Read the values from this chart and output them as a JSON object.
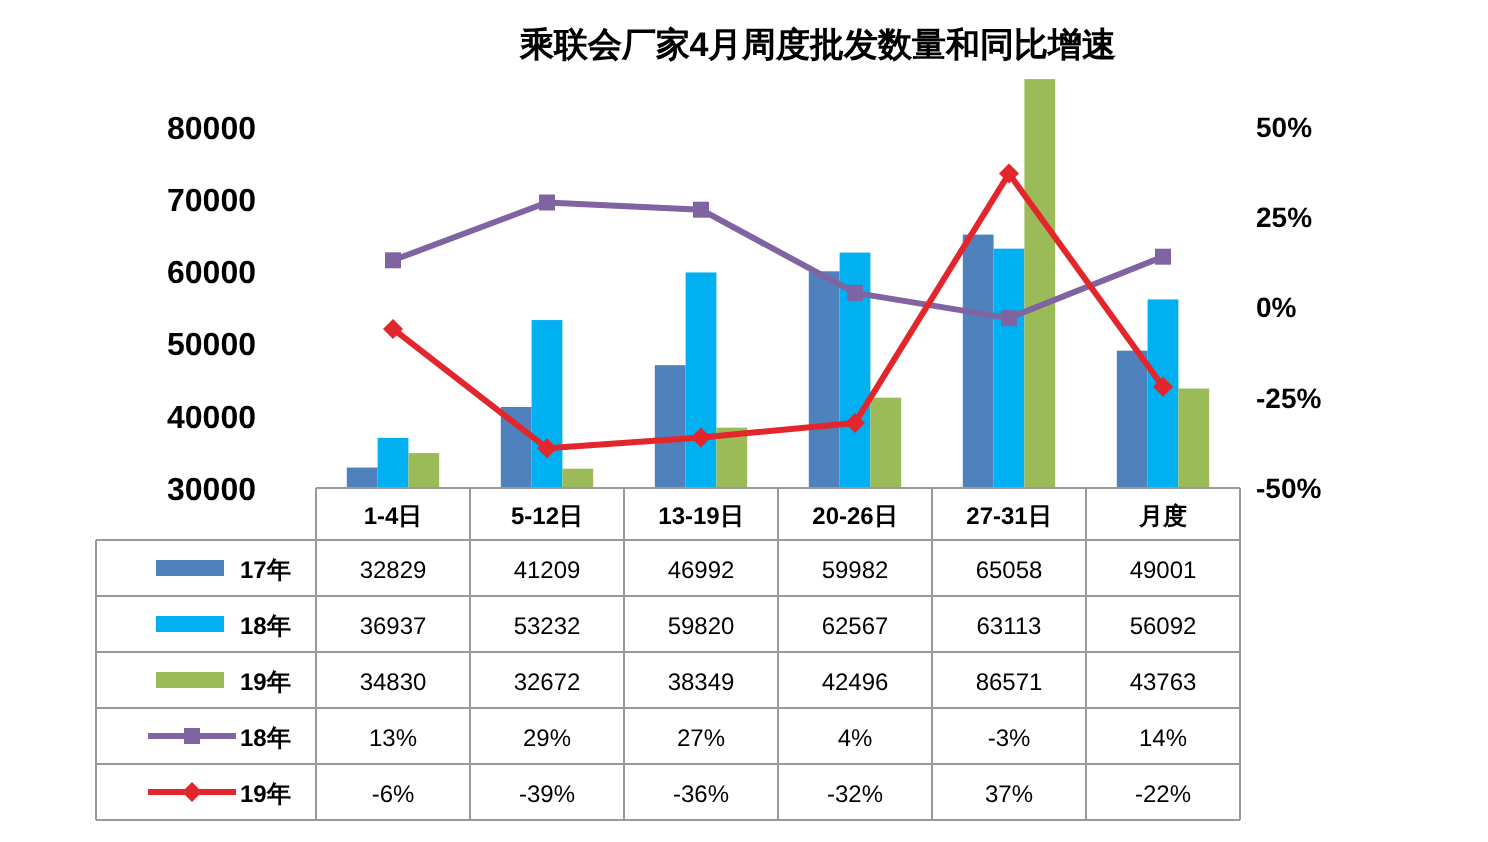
{
  "chart_data": {
    "type": "bar",
    "title": "乘联会厂家4月周度批发数量和同比增速",
    "categories": [
      "1-4日",
      "5-12日",
      "13-19日",
      "20-26日",
      "27-31日",
      "月度"
    ],
    "ylim": [
      30000,
      87000
    ],
    "yticks": [
      30000,
      40000,
      50000,
      60000,
      70000,
      80000
    ],
    "y2lim": [
      -50,
      64
    ],
    "y2ticks": [
      {
        "value": -50,
        "label": "-50%"
      },
      {
        "value": -25,
        "label": "-25%"
      },
      {
        "value": 0,
        "label": "0%"
      },
      {
        "value": 25,
        "label": "25%"
      },
      {
        "value": 50,
        "label": "50%"
      }
    ],
    "legend": "bottom",
    "series": [
      {
        "name": "17年",
        "color": "#4f81bd",
        "values": [
          32829,
          41209,
          46992,
          59982,
          65058,
          49001
        ],
        "value_labels": [
          "32829",
          "41209",
          "46992",
          "59982",
          "65058",
          "49001"
        ]
      },
      {
        "name": "18年",
        "color": "#00b0f0",
        "values": [
          36937,
          53232,
          59820,
          62567,
          63113,
          56092
        ],
        "value_labels": [
          "36937",
          "53232",
          "59820",
          "62567",
          "63113",
          "56092"
        ]
      },
      {
        "name": "19年",
        "color": "#9bbb59",
        "values": [
          34830,
          32672,
          38349,
          42496,
          86571,
          43763
        ],
        "value_labels": [
          "34830",
          "32672",
          "38349",
          "42496",
          "86571",
          "43763"
        ]
      },
      {
        "name": "18年",
        "type": "line",
        "axis": "y2",
        "marker": "square",
        "color": "#8064a2",
        "values": [
          13,
          29,
          27,
          4,
          -3,
          14
        ],
        "value_labels": [
          "13%",
          "29%",
          "27%",
          "4%",
          "-3%",
          "14%"
        ]
      },
      {
        "name": "19年",
        "type": "line",
        "axis": "y2",
        "marker": "diamond",
        "color": "#e3262b",
        "values": [
          -6,
          -39,
          -36,
          -32,
          37,
          -22
        ],
        "value_labels": [
          "-6%",
          "-39%",
          "-36%",
          "-32%",
          "37%",
          "-22%"
        ]
      }
    ]
  }
}
